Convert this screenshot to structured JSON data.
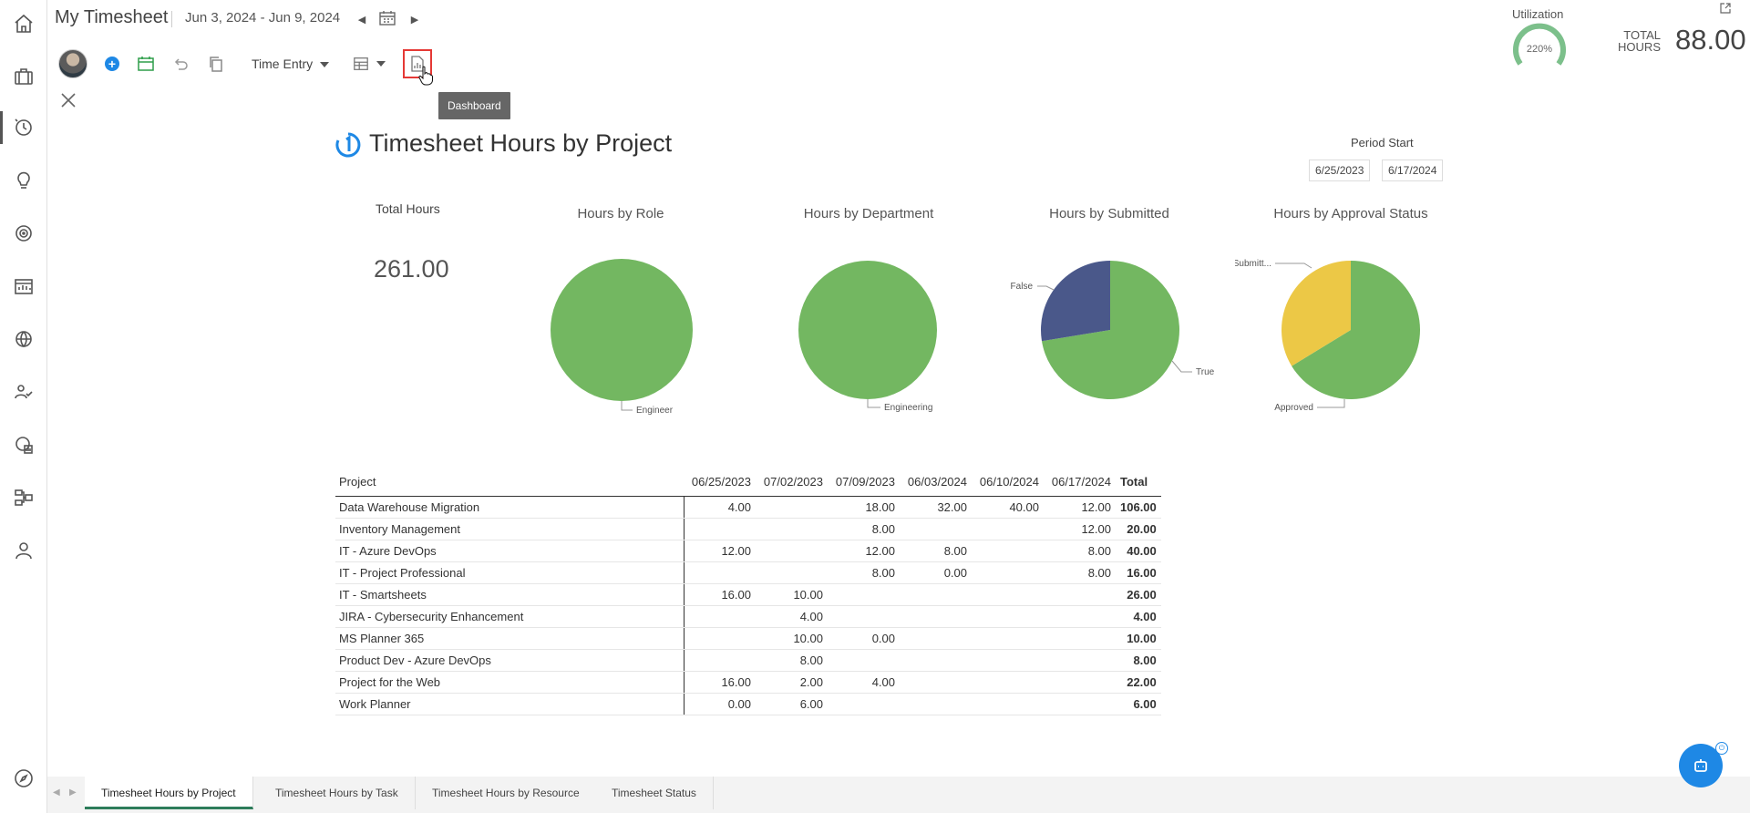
{
  "header": {
    "title": "My Timesheet",
    "date_range": "Jun 3, 2024 - Jun 9, 2024",
    "utilization_label": "Utilization",
    "utilization_value": "220%",
    "utilization_pct": 100,
    "total_hours_label": "TOTAL HOURS",
    "total_hours_value": "88.00"
  },
  "toolbar": {
    "time_entry_label": "Time Entry",
    "dashboard_tooltip": "Dashboard"
  },
  "sidebar": {
    "items": [
      {
        "icon": "home-icon"
      },
      {
        "icon": "briefcase-icon"
      },
      {
        "icon": "timesheet-clock-icon"
      },
      {
        "icon": "lightbulb-icon"
      },
      {
        "icon": "target-icon"
      },
      {
        "icon": "report-chart-icon"
      },
      {
        "icon": "globe-icon"
      },
      {
        "icon": "people-icon"
      },
      {
        "icon": "analytics-icon"
      },
      {
        "icon": "hierarchy-icon"
      },
      {
        "icon": "user-icon"
      },
      {
        "icon": "compass-icon"
      }
    ]
  },
  "dashboard": {
    "title": "Timesheet Hours by Project",
    "period_start_label": "Period Start",
    "period_from": "6/25/2023",
    "period_to": "6/17/2024",
    "kpi_label": "Total Hours",
    "kpi_value": "261.00",
    "colors": {
      "green": "#73b761",
      "navy": "#4a588a",
      "yellow": "#ecc846"
    }
  },
  "chart_data": [
    {
      "type": "pie",
      "title": "Hours by Role",
      "labels": [
        "Engineer"
      ],
      "values": [
        261
      ]
    },
    {
      "type": "pie",
      "title": "Hours by Department",
      "labels": [
        "Engineering"
      ],
      "values": [
        261
      ]
    },
    {
      "type": "pie",
      "title": "Hours by Submitted",
      "labels": [
        "True",
        "False"
      ],
      "values": [
        189,
        72
      ]
    },
    {
      "type": "pie",
      "title": "Hours by Approval Status",
      "labels": [
        "Approved",
        "Not Submitt..."
      ],
      "values": [
        173,
        88
      ]
    }
  ],
  "table": {
    "headers": [
      "Project",
      "06/25/2023",
      "07/02/2023",
      "07/09/2023",
      "06/03/2024",
      "06/10/2024",
      "06/17/2024",
      "Total"
    ],
    "rows": [
      [
        "Data Warehouse Migration",
        "4.00",
        "",
        "18.00",
        "32.00",
        "40.00",
        "12.00",
        "106.00"
      ],
      [
        "Inventory Management",
        "",
        "",
        "8.00",
        "",
        "",
        "12.00",
        "20.00"
      ],
      [
        "IT - Azure DevOps",
        "12.00",
        "",
        "12.00",
        "8.00",
        "",
        "8.00",
        "40.00"
      ],
      [
        "IT - Project Professional",
        "",
        "",
        "8.00",
        "0.00",
        "",
        "8.00",
        "16.00"
      ],
      [
        "IT - Smartsheets",
        "16.00",
        "10.00",
        "",
        "",
        "",
        "",
        "26.00"
      ],
      [
        "JIRA - Cybersecurity Enhancement",
        "",
        "4.00",
        "",
        "",
        "",
        "",
        "4.00"
      ],
      [
        "MS Planner 365",
        "",
        "10.00",
        "0.00",
        "",
        "",
        "",
        "10.00"
      ],
      [
        "Product Dev - Azure DevOps",
        "",
        "8.00",
        "",
        "",
        "",
        "",
        "8.00"
      ],
      [
        "Project for the Web",
        "16.00",
        "2.00",
        "4.00",
        "",
        "",
        "",
        "22.00"
      ],
      [
        "Work Planner",
        "0.00",
        "6.00",
        "",
        "",
        "",
        "",
        "6.00"
      ]
    ]
  },
  "tabs": [
    {
      "label": "Timesheet Hours by Project",
      "active": true
    },
    {
      "label": "Timesheet Hours by Task",
      "active": false
    },
    {
      "label": "Timesheet Hours by Resource",
      "active": false
    },
    {
      "label": "Timesheet Status",
      "active": false
    }
  ]
}
